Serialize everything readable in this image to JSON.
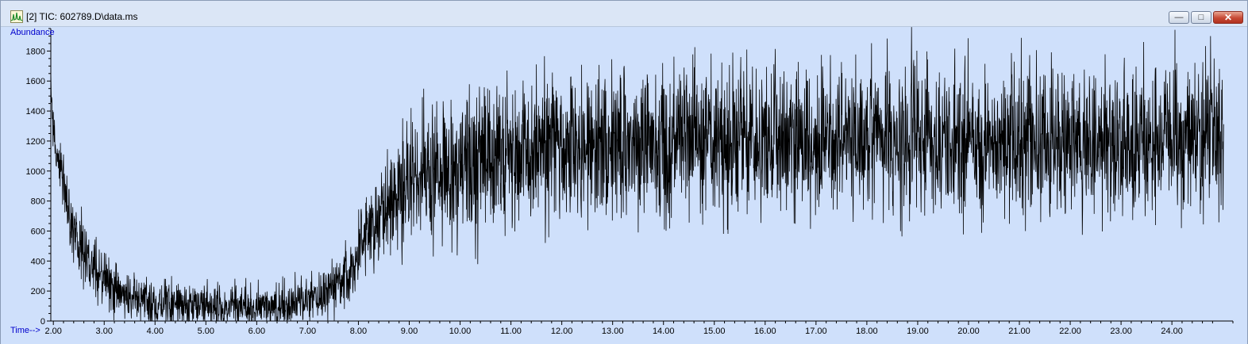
{
  "window": {
    "title": "[2] TIC: 602789.D\\data.ms",
    "icon": "chromatogram-app-icon",
    "controls": {
      "minimize_icon": "minimize-icon",
      "restore_icon": "restore-icon",
      "close_icon": "close-icon"
    }
  },
  "colors": {
    "plot_background": "#cfe0fb",
    "trace": "#000000",
    "axis_label": "#0000cc",
    "close_button": "#c74a35"
  },
  "chart_data": {
    "type": "line",
    "ylabel": "Abundance",
    "xlabel": "Time-->",
    "xlim": [
      1.95,
      25.2
    ],
    "ylim": [
      0,
      1950
    ],
    "xticks": [
      "2.00",
      "3.00",
      "4.00",
      "5.00",
      "6.00",
      "7.00",
      "8.00",
      "9.00",
      "10.00",
      "11.00",
      "12.00",
      "13.00",
      "14.00",
      "15.00",
      "16.00",
      "17.00",
      "18.00",
      "19.00",
      "20.00",
      "21.00",
      "22.00",
      "23.00",
      "24.00"
    ],
    "yticks": [
      "0",
      "200",
      "400",
      "600",
      "800",
      "1000",
      "1200",
      "1400",
      "1600",
      "1800"
    ],
    "series": [
      {
        "x": [
          1.95,
          2.0,
          2.2,
          2.4,
          2.6,
          2.8,
          3.0,
          3.3,
          3.6,
          4.0,
          4.5,
          5.0,
          5.5,
          6.0,
          6.5,
          7.0,
          7.3,
          7.6,
          7.9,
          8.2,
          8.5,
          8.8,
          9.1,
          9.4,
          9.7,
          10.0,
          10.5,
          11.0,
          12.0,
          13.0,
          14.0,
          15.0,
          16.0,
          17.0,
          18.0,
          19.0,
          20.0,
          21.0,
          22.0,
          23.0,
          24.0,
          25.0
        ],
        "y": [
          1600,
          1250,
          880,
          620,
          470,
          360,
          260,
          190,
          150,
          120,
          110,
          100,
          100,
          100,
          110,
          130,
          180,
          260,
          380,
          540,
          720,
          860,
          920,
          970,
          1010,
          1040,
          1080,
          1100,
          1150,
          1170,
          1180,
          1190,
          1200,
          1200,
          1200,
          1210,
          1210,
          1210,
          1220,
          1220,
          1220,
          1230
        ],
        "noise_amplitude": [
          60,
          70,
          90,
          110,
          120,
          110,
          100,
          90,
          80,
          80,
          80,
          80,
          80,
          80,
          80,
          80,
          90,
          100,
          120,
          150,
          180,
          200,
          220,
          230,
          240,
          240,
          250,
          250,
          250,
          250,
          250,
          250,
          250,
          250,
          250,
          250,
          250,
          250,
          250,
          250,
          250,
          250
        ]
      }
    ],
    "peaks": [
      {
        "x": 18.88,
        "y": 1960
      },
      {
        "x": 24.76,
        "y": 1900
      },
      {
        "x": 24.83,
        "y": 1750
      },
      {
        "x": 15.64,
        "y": 1810
      },
      {
        "x": 15.52,
        "y": 1760
      }
    ]
  }
}
